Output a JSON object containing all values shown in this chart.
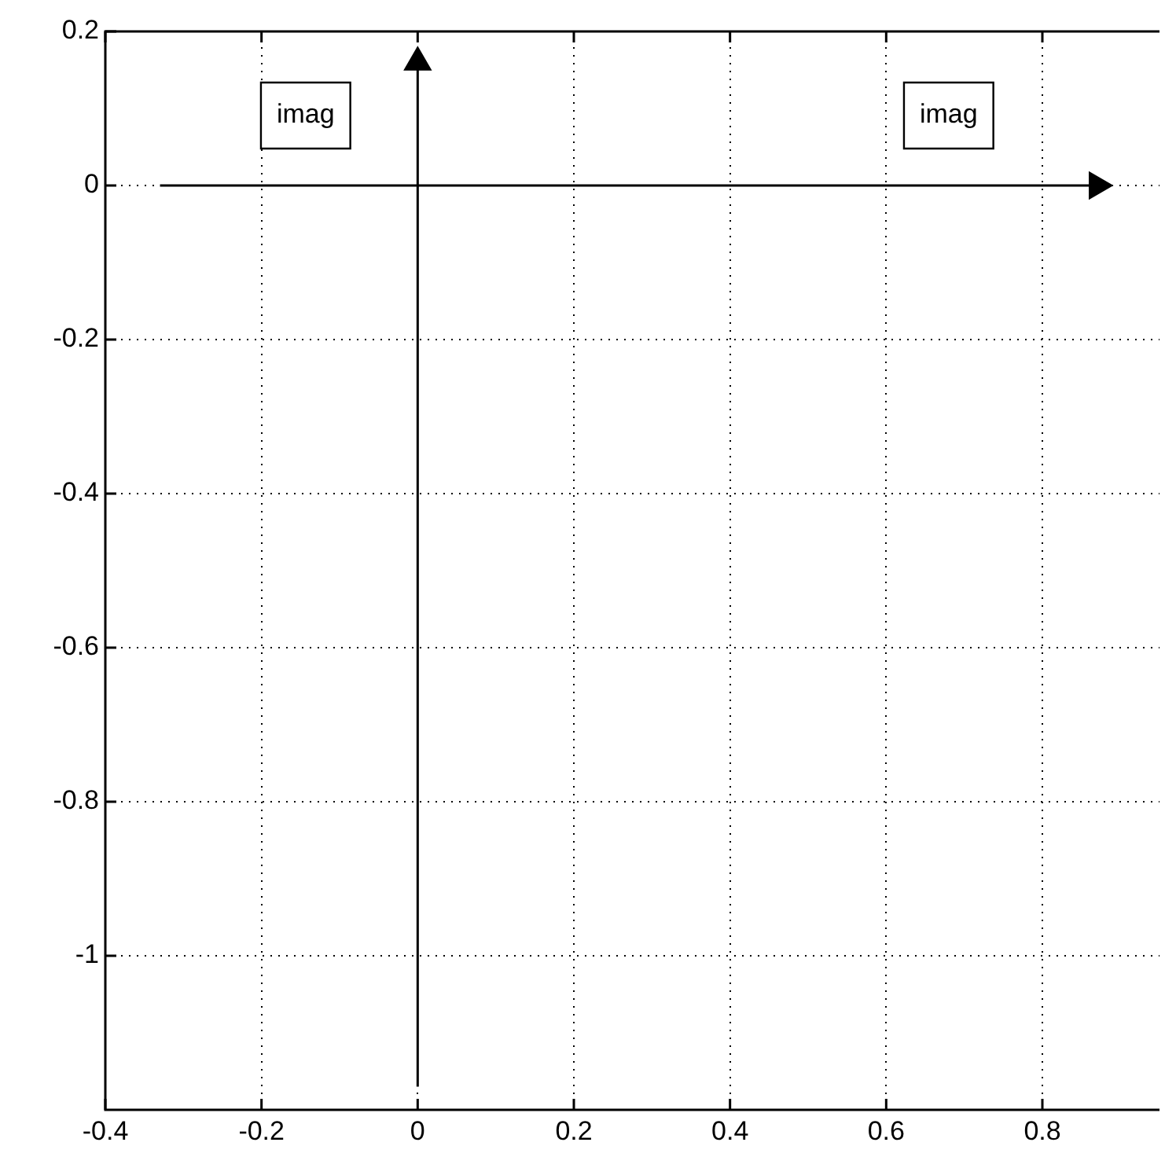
{
  "chart_data": {
    "type": "line",
    "xlim": [
      -0.4,
      0.95
    ],
    "ylim": [
      -1.2,
      0.2
    ],
    "xticks": [
      -0.4,
      -0.2,
      0,
      0.2,
      0.4,
      0.6,
      0.8
    ],
    "yticks": [
      -1,
      -0.8,
      -0.6,
      -0.4,
      -0.2,
      0,
      0.2
    ],
    "grid": true,
    "legend": false,
    "line_style": "solid",
    "series": [
      {
        "color": "#000000",
        "x": [
          -0.33,
          0.87
        ],
        "values": [
          0,
          0
        ]
      },
      {
        "color": "#000000",
        "x": [
          0,
          0
        ],
        "values": [
          -1.17,
          0.16
        ]
      }
    ],
    "annotations": [
      "imag",
      "imag"
    ]
  }
}
